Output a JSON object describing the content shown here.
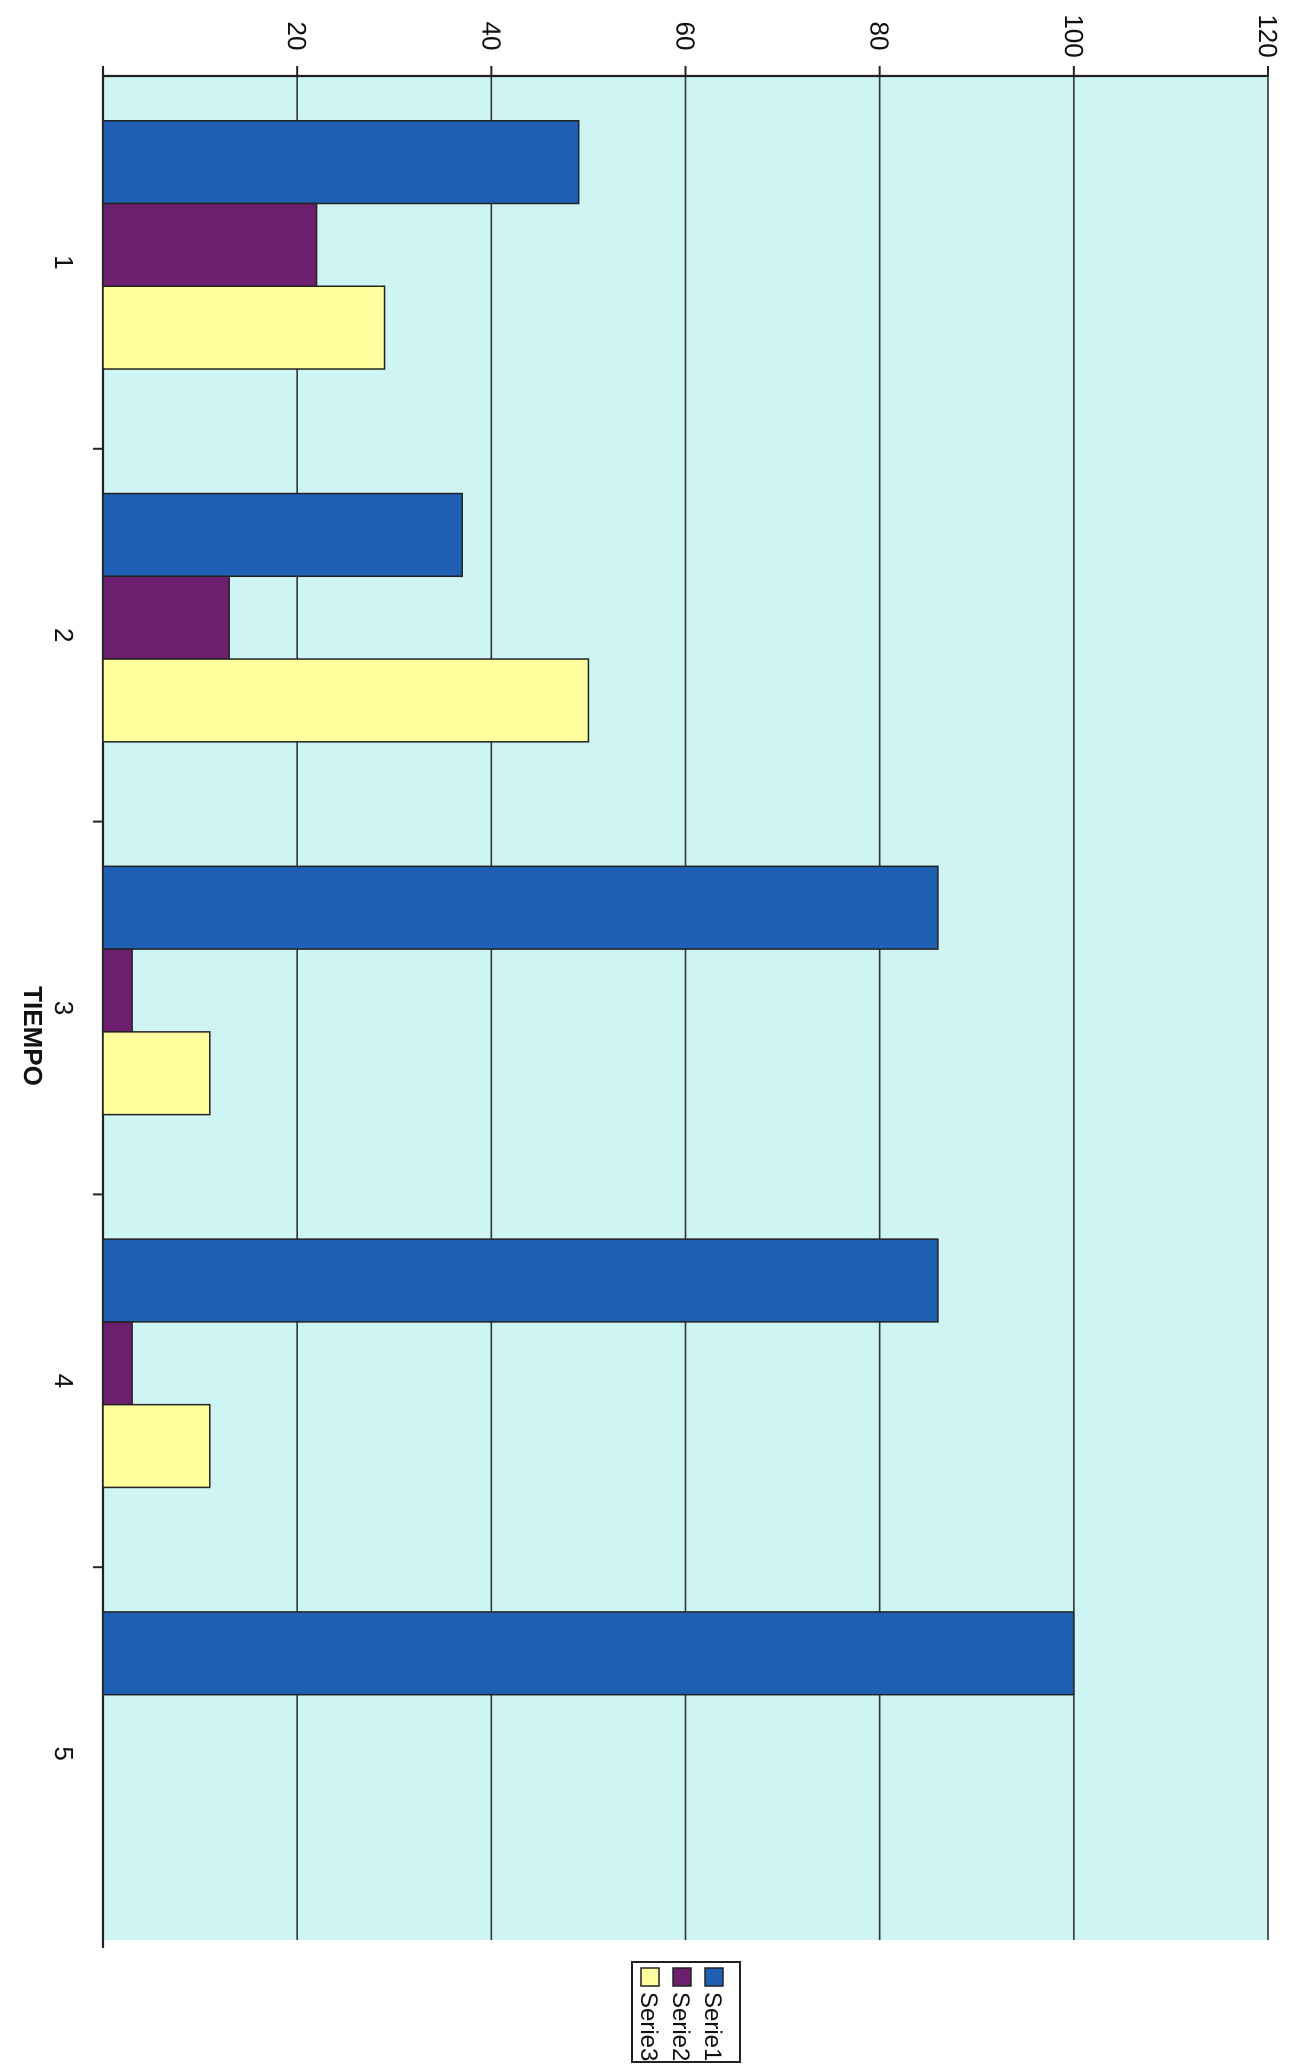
{
  "chart_data": {
    "type": "bar",
    "orientation": "rotated-90-clockwise",
    "categories": [
      "1",
      "2",
      "3",
      "4",
      "5"
    ],
    "series": [
      {
        "name": "Serie1",
        "color": "#1f5fb4",
        "values": [
          49,
          37,
          86,
          86,
          100
        ]
      },
      {
        "name": "Serie2",
        "color": "#6b1f6e",
        "values": [
          22,
          13,
          3,
          3,
          0
        ]
      },
      {
        "name": "Serie3",
        "color": "#ffff9e",
        "values": [
          29,
          50,
          11,
          11,
          0
        ]
      }
    ],
    "xlabel": "TIEMPO",
    "ylabel": "",
    "ylim": [
      0,
      120
    ],
    "yticks": [
      "",
      "20",
      "40",
      "60",
      "80",
      "100",
      "120"
    ],
    "grid": true,
    "legend_position": "bottom-right"
  }
}
